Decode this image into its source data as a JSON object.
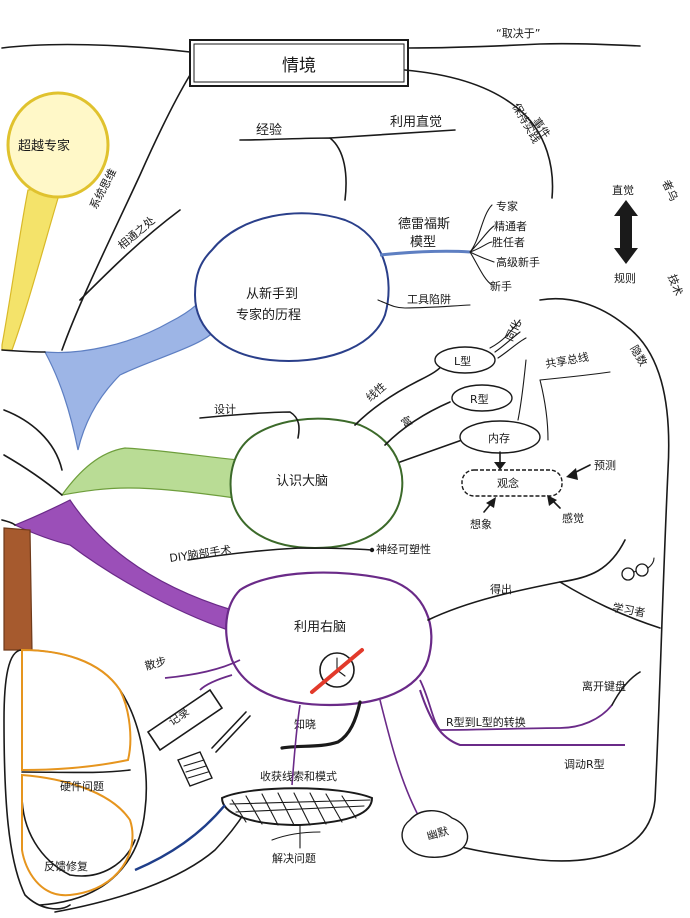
{
  "nodes": {
    "context": "情境",
    "depends": "“取决于”",
    "event": "事件",
    "practice": "保持实践",
    "beyond_expert": "超越专家",
    "systems_thinking": "系统思维",
    "connected": "相通之处",
    "experience": "经验",
    "use_intuition": "利用直觉",
    "novice_expert_line1": "从新手到",
    "novice_expert_line2": "专家的历程",
    "dreyfus_line1": "德雷福斯",
    "dreyfus_line2": "模型",
    "expert": "专家",
    "proficient": "精通者",
    "competent": "胜任者",
    "advanced_beginner": "高级新手",
    "novice": "新手",
    "tool_trap": "工具陷阱",
    "intuition": "直觉",
    "rules": "规则",
    "side_a": "者乌",
    "side_b": "技术",
    "understand_brain": "认识大脑",
    "design": "设计",
    "linear": "线性",
    "rich": "富",
    "l_type": "L型",
    "r_type": "R型",
    "memory": "内存",
    "sync": "同化",
    "shared_bus": "共享总线",
    "contrast": "隐数",
    "concept": "观念",
    "predict": "预测",
    "imagine": "想象",
    "perceive": "感觉",
    "diy_brain": "DIY脑部手术",
    "neuroplasticity": "神经可塑性",
    "use_right_brain": "利用右脑",
    "get_out": "得出",
    "learner": "学习者",
    "walk": "散步",
    "record": "记录",
    "leave_keyboard": "离开键盘",
    "r_to_l": "R型到L型的转换",
    "invoke_r": "调动R型",
    "aware": "知晓",
    "harvest": "收获线索和模式",
    "hardware": "硬件问题",
    "feedback": "反馈修复",
    "solve": "解决问题",
    "humor": "幽默"
  },
  "icons": [
    "glasses-icon",
    "clock-crossed-icon",
    "pen-icon",
    "notebook-icon",
    "double-arrow-icon",
    "basket-icon"
  ],
  "colors": {
    "ink": "#1a1a1a",
    "yellow": "#f2dc48",
    "blue": "#7f9ed8",
    "green": "#8fbf5e",
    "purple": "#8a3da6",
    "brown": "#a0522d",
    "orange": "#e6951e",
    "red": "#e23a2b"
  }
}
